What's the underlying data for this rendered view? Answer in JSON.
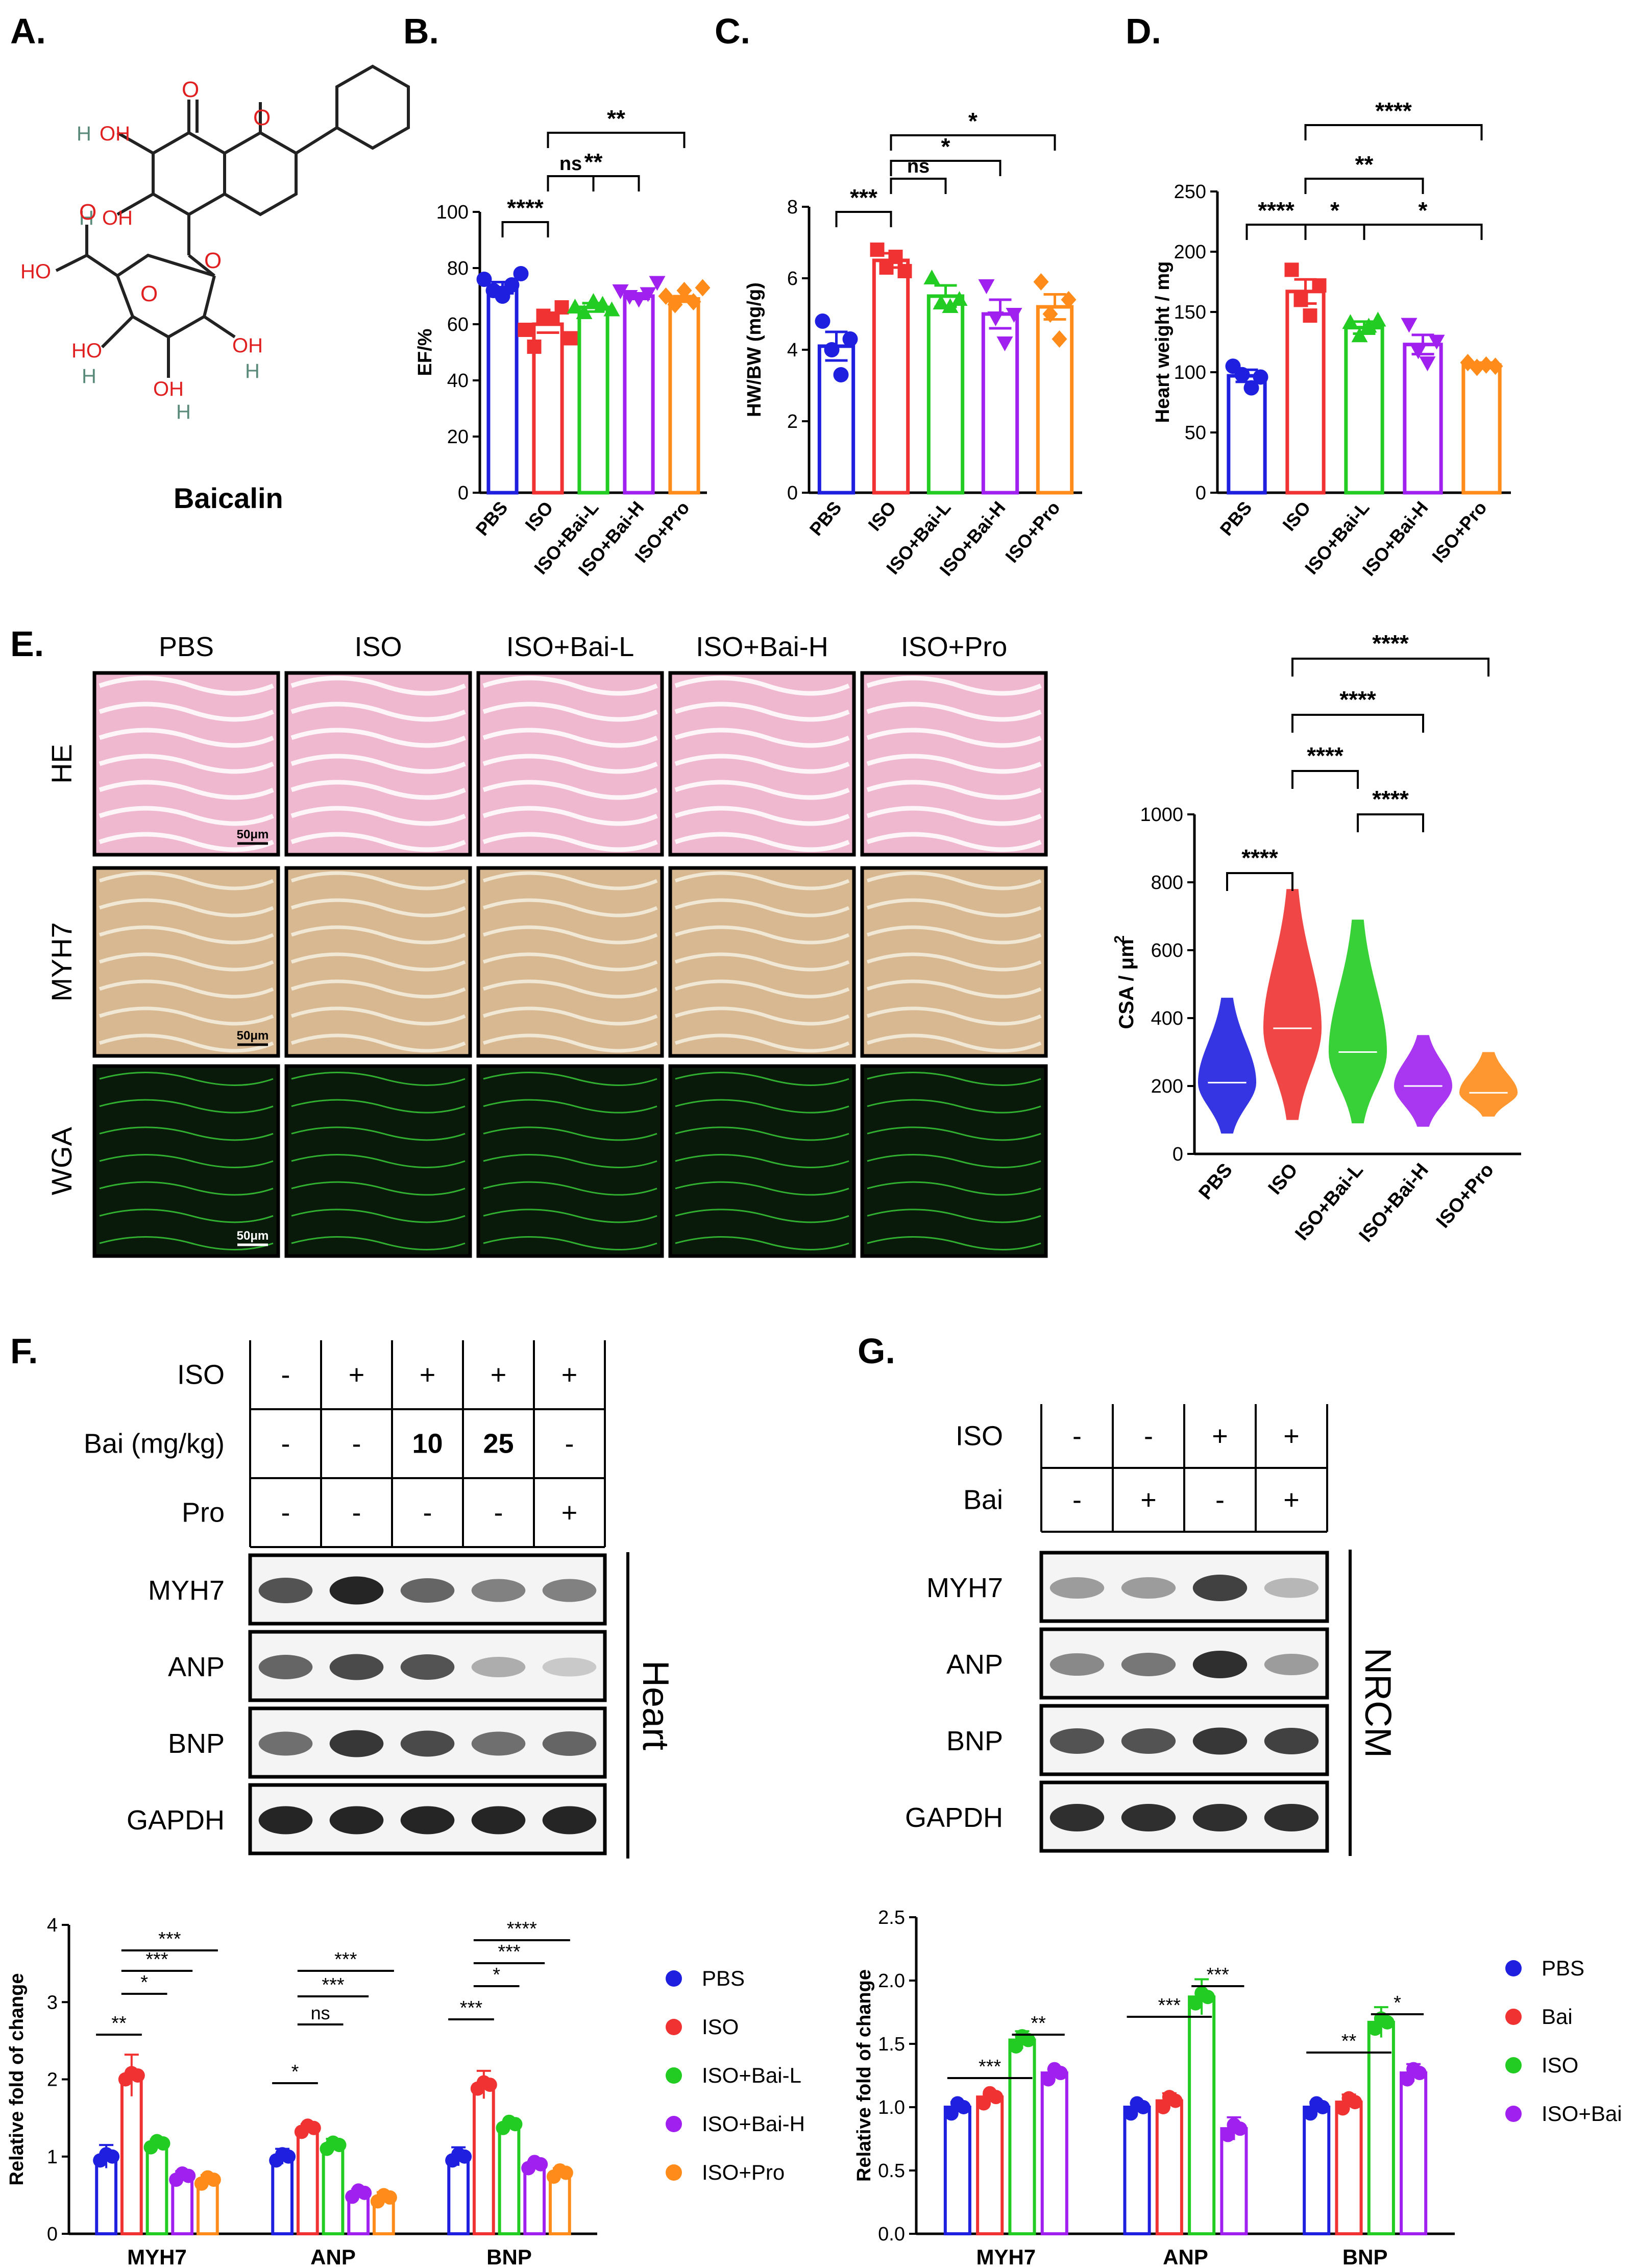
{
  "panel_letters": {
    "a": "A.",
    "b": "B.",
    "c": "C.",
    "d": "D.",
    "e": "E.",
    "f": "F.",
    "g": "G."
  },
  "compound_name": "Baicalin",
  "structure_atoms": {
    "o": "O",
    "h": "H",
    "oh": "OH",
    "ho": "HO"
  },
  "colors": {
    "pbs": "#1f1fe0",
    "iso": "#f03232",
    "bai_l": "#22cc22",
    "bai_h": "#a020f0",
    "pro": "#ff8c1a",
    "bai": "#f03232",
    "iso_g": "#22cc22",
    "iso_bai": "#a020f0"
  },
  "chart_data": [
    {
      "id": "B",
      "type": "bar",
      "ylabel": "EF/%",
      "ylim": [
        0,
        100
      ],
      "yticks": [
        0,
        20,
        40,
        60,
        80,
        100
      ],
      "categories": [
        "PBS",
        "ISO",
        "ISO+Bai-L",
        "ISO+Bai-H",
        "ISO+Pro"
      ],
      "values": [
        73,
        60,
        66,
        70,
        69
      ],
      "errors": [
        2,
        3,
        1.5,
        1,
        1
      ],
      "points": [
        [
          76,
          72,
          70,
          74,
          78
        ],
        [
          58,
          52,
          63,
          62,
          66,
          55
        ],
        [
          66,
          64,
          68,
          67,
          65
        ],
        [
          72,
          70,
          69,
          71,
          75
        ],
        [
          70,
          67,
          72,
          68,
          73
        ]
      ],
      "sig": [
        {
          "from": 0,
          "to": 1,
          "label": "****"
        },
        {
          "from": 1,
          "to": 2,
          "label": "ns"
        },
        {
          "from": 1,
          "to": 3,
          "label": "**"
        },
        {
          "from": 1,
          "to": 4,
          "label": "**"
        }
      ]
    },
    {
      "id": "C",
      "type": "bar",
      "ylabel": "HW/BW (mg/g)",
      "ylim": [
        0,
        8
      ],
      "yticks": [
        0,
        2,
        4,
        6,
        8
      ],
      "categories": [
        "PBS",
        "ISO",
        "ISO+Bai-L",
        "ISO+Bai-H",
        "ISO+Pro"
      ],
      "values": [
        4.1,
        6.5,
        5.5,
        5.0,
        5.2
      ],
      "errors": [
        0.4,
        0.2,
        0.3,
        0.4,
        0.35
      ],
      "points": [
        [
          4.8,
          4.0,
          3.3,
          4.3
        ],
        [
          6.8,
          6.3,
          6.6,
          6.2
        ],
        [
          6.0,
          5.3,
          5.2,
          5.4
        ],
        [
          5.8,
          4.9,
          4.2,
          5.0
        ],
        [
          5.9,
          5.0,
          4.3,
          5.4
        ]
      ],
      "sig": [
        {
          "from": 0,
          "to": 1,
          "label": "***"
        },
        {
          "from": 1,
          "to": 2,
          "label": "ns"
        },
        {
          "from": 1,
          "to": 3,
          "label": "*"
        },
        {
          "from": 1,
          "to": 4,
          "label": "*"
        }
      ]
    },
    {
      "id": "D",
      "type": "bar",
      "ylabel": "Heart weight / mg",
      "ylim": [
        0,
        250
      ],
      "yticks": [
        0,
        50,
        100,
        150,
        200,
        250
      ],
      "categories": [
        "PBS",
        "ISO",
        "ISO+Bai-L",
        "ISO+Bai-H",
        "ISO+Pro"
      ],
      "values": [
        97,
        167,
        137,
        123,
        106
      ],
      "errors": [
        5,
        10,
        5,
        8,
        2
      ],
      "points": [
        [
          105,
          98,
          87,
          96
        ],
        [
          185,
          160,
          147,
          172
        ],
        [
          141,
          130,
          138,
          143
        ],
        [
          140,
          118,
          108,
          126
        ],
        [
          108,
          104,
          106,
          105
        ]
      ],
      "sig": [
        {
          "from": 0,
          "to": 1,
          "label": "****"
        },
        {
          "from": 1,
          "to": 2,
          "label": "*"
        },
        {
          "from": 2,
          "to": 4,
          "label": "*"
        },
        {
          "from": 1,
          "to": 3,
          "label": "**"
        },
        {
          "from": 1,
          "to": 4,
          "label": "****"
        }
      ]
    },
    {
      "id": "E-CSA",
      "type": "violin",
      "ylabel": "CSA / μm",
      "ylabel_sup": "2",
      "ylim": [
        0,
        1000
      ],
      "yticks": [
        0,
        200,
        400,
        600,
        800,
        1000
      ],
      "categories": [
        "PBS",
        "ISO",
        "ISO+Bai-L",
        "ISO+Bai-H",
        "ISO+Pro"
      ],
      "distributions": [
        {
          "min": 60,
          "max": 460,
          "median": 210
        },
        {
          "min": 100,
          "max": 780,
          "median": 370
        },
        {
          "min": 90,
          "max": 690,
          "median": 300
        },
        {
          "min": 80,
          "max": 350,
          "median": 200
        },
        {
          "min": 110,
          "max": 300,
          "median": 180
        }
      ],
      "sig": [
        {
          "from": 0,
          "to": 1,
          "label": "****"
        },
        {
          "from": 2,
          "to": 3,
          "label": "****"
        },
        {
          "from": 1,
          "to": 2,
          "label": "****"
        },
        {
          "from": 1,
          "to": 3,
          "label": "****"
        },
        {
          "from": 1,
          "to": 4,
          "label": "****"
        }
      ]
    },
    {
      "id": "F-quant",
      "type": "bar",
      "ylabel": "Relative fold of change",
      "ylim": [
        0,
        4
      ],
      "yticks": [
        0,
        1,
        2,
        3,
        4
      ],
      "groups": [
        "MYH7",
        "ANP",
        "BNP"
      ],
      "series": [
        {
          "name": "PBS",
          "values": [
            1.0,
            1.0,
            1.0
          ]
        },
        {
          "name": "ISO",
          "values": [
            2.05,
            1.37,
            1.93
          ]
        },
        {
          "name": "ISO+Bai-L",
          "values": [
            1.17,
            1.15,
            1.42
          ]
        },
        {
          "name": "ISO+Bai-H",
          "values": [
            0.75,
            0.53,
            0.9
          ]
        },
        {
          "name": "ISO+Pro",
          "values": [
            0.7,
            0.47,
            0.79
          ]
        }
      ],
      "errors": [
        [
          0.15,
          0.1,
          0.12
        ],
        [
          0.27,
          0.05,
          0.18
        ],
        [
          0.05,
          0.08,
          0.03
        ],
        [
          0.06,
          0.05,
          0.04
        ],
        [
          0.06,
          0.07,
          0.06
        ]
      ],
      "sig": [
        [
          {
            "from": 0,
            "to": 1,
            "label": "**"
          },
          {
            "from": 1,
            "to": 2,
            "label": "*"
          },
          {
            "from": 1,
            "to": 3,
            "label": "***"
          },
          {
            "from": 1,
            "to": 4,
            "label": "***"
          }
        ],
        [
          {
            "from": 0,
            "to": 1,
            "label": "*"
          },
          {
            "from": 1,
            "to": 2,
            "label": "ns"
          },
          {
            "from": 1,
            "to": 3,
            "label": "***"
          },
          {
            "from": 1,
            "to": 4,
            "label": "***"
          }
        ],
        [
          {
            "from": 0,
            "to": 1,
            "label": "***"
          },
          {
            "from": 1,
            "to": 2,
            "label": "*"
          },
          {
            "from": 1,
            "to": 3,
            "label": "***"
          },
          {
            "from": 1,
            "to": 4,
            "label": "****"
          }
        ]
      ]
    },
    {
      "id": "G-quant",
      "type": "bar",
      "ylabel": "Relative fold of change",
      "ylim": [
        0,
        2.5
      ],
      "yticks": [
        "0.0",
        "0.5",
        "1.0",
        "1.5",
        "2.0",
        "2.5"
      ],
      "groups": [
        "MYH7",
        "ANP",
        "BNP"
      ],
      "series": [
        {
          "name": "PBS",
          "values": [
            1.0,
            1.0,
            1.0
          ]
        },
        {
          "name": "Bai",
          "values": [
            1.08,
            1.05,
            1.04
          ]
        },
        {
          "name": "ISO",
          "values": [
            1.53,
            1.87,
            1.67
          ]
        },
        {
          "name": "ISO+Bai",
          "values": [
            1.27,
            0.83,
            1.27
          ]
        }
      ],
      "errors": [
        [
          0.04,
          0.03,
          0.04
        ],
        [
          0.02,
          0.06,
          0.06
        ],
        [
          0.07,
          0.14,
          0.12
        ],
        [
          0.03,
          0.09,
          0.07
        ]
      ],
      "sig": [
        [
          {
            "from": 0,
            "to": 2,
            "label": "***"
          },
          {
            "from": 2,
            "to": 3,
            "label": "**"
          }
        ],
        [
          {
            "from": 0,
            "to": 2,
            "label": "***"
          },
          {
            "from": 2,
            "to": 3,
            "label": "***"
          }
        ],
        [
          {
            "from": 0,
            "to": 2,
            "label": "**"
          },
          {
            "from": 2,
            "to": 3,
            "label": "*"
          }
        ]
      ]
    }
  ],
  "micrograph": {
    "columns": [
      "PBS",
      "ISO",
      "ISO+Bai-L",
      "ISO+Bai-H",
      "ISO+Pro"
    ],
    "rows": [
      "HE",
      "MYH7",
      "WGA"
    ],
    "scale_bar": "50μm"
  },
  "blot_f": {
    "treatments": [
      {
        "label": "ISO",
        "cells": [
          "-",
          "+",
          "+",
          "+",
          "+"
        ]
      },
      {
        "label": "Bai (mg/kg)",
        "cells": [
          "-",
          "-",
          "10",
          "25",
          "-"
        ]
      },
      {
        "label": "Pro",
        "cells": [
          "-",
          "-",
          "-",
          "-",
          "+"
        ]
      }
    ],
    "bands": [
      "MYH7",
      "ANP",
      "BNP",
      "GAPDH"
    ],
    "tissue": "Heart"
  },
  "blot_g": {
    "treatments": [
      {
        "label": "ISO",
        "cells": [
          "-",
          "-",
          "+",
          "+"
        ]
      },
      {
        "label": "Bai",
        "cells": [
          "-",
          "+",
          "-",
          "+"
        ]
      }
    ],
    "bands": [
      "MYH7",
      "ANP",
      "BNP",
      "GAPDH"
    ],
    "tissue": "NRCM"
  }
}
